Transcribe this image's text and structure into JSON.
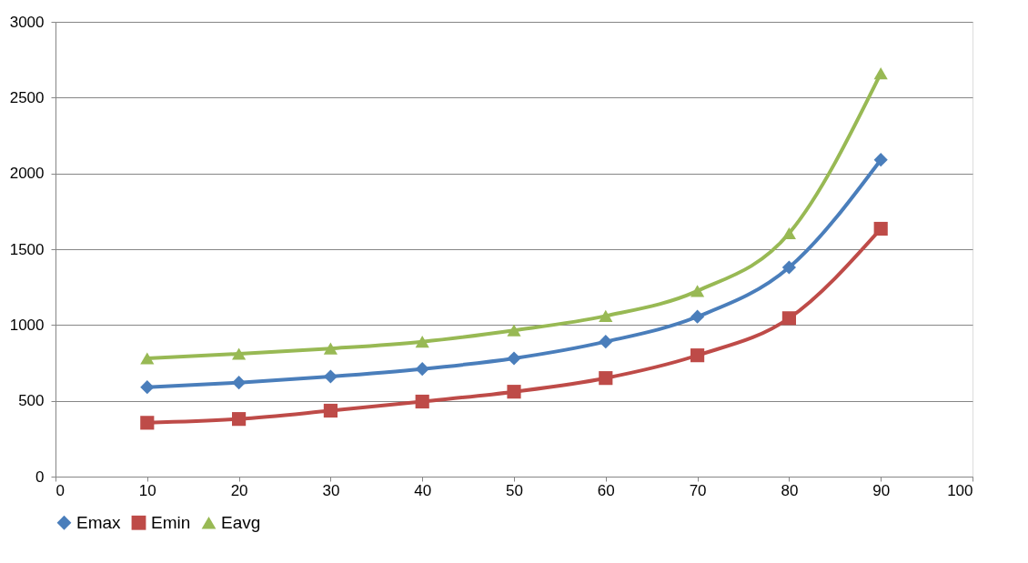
{
  "chart_data": {
    "type": "line",
    "x": [
      10,
      20,
      30,
      40,
      50,
      60,
      70,
      80,
      90
    ],
    "series": [
      {
        "name": "Emax",
        "color": "#4a7ebb",
        "marker": "diamond",
        "values": [
          590,
          620,
          660,
          710,
          780,
          890,
          1055,
          1380,
          2090
        ]
      },
      {
        "name": "Emin",
        "color": "#be4b48",
        "marker": "square",
        "values": [
          355,
          380,
          435,
          495,
          560,
          650,
          800,
          1045,
          1635
        ]
      },
      {
        "name": "Eavg",
        "color": "#98b954",
        "marker": "triangle",
        "values": [
          780,
          810,
          845,
          890,
          965,
          1060,
          1225,
          1605,
          2660
        ]
      }
    ],
    "xlim": [
      0,
      100
    ],
    "xticks": [
      0,
      10,
      20,
      30,
      40,
      50,
      60,
      70,
      80,
      90,
      100
    ],
    "ylim": [
      0,
      3000
    ],
    "yticks": [
      0,
      500,
      1000,
      1500,
      2000,
      2500,
      3000
    ],
    "grid": "y",
    "legend": "bottom",
    "line_style": "solid"
  }
}
